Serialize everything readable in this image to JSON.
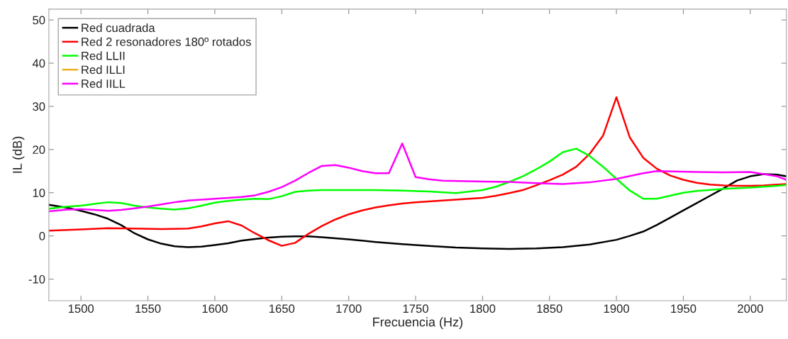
{
  "chart_data": {
    "type": "line",
    "xlabel": "Frecuencia (Hz)",
    "ylabel": "IL (dB)",
    "xlim": [
      1476,
      2027
    ],
    "ylim": [
      -15,
      52.5
    ],
    "xticks": [
      1500,
      1550,
      1600,
      1650,
      1700,
      1750,
      1800,
      1850,
      1900,
      1950,
      2000
    ],
    "yticks": [
      -10,
      0,
      10,
      20,
      30,
      40,
      50
    ],
    "grid": false,
    "legend": "top left",
    "marker": "none",
    "line_style": "solid",
    "series": [
      {
        "name": "Red cuadrada",
        "color": "#000000",
        "x": [
          1476,
          1490,
          1500,
          1510,
          1520,
          1530,
          1540,
          1550,
          1560,
          1570,
          1580,
          1590,
          1600,
          1610,
          1620,
          1630,
          1640,
          1650,
          1660,
          1670,
          1680,
          1700,
          1720,
          1740,
          1760,
          1780,
          1800,
          1820,
          1840,
          1860,
          1880,
          1900,
          1910,
          1920,
          1930,
          1940,
          1950,
          1960,
          1970,
          1980,
          1990,
          2000,
          2010,
          2020,
          2027
        ],
        "values": [
          7.2,
          6.5,
          5.8,
          5.0,
          4.0,
          2.5,
          0.6,
          -0.8,
          -1.8,
          -2.4,
          -2.6,
          -2.5,
          -2.1,
          -1.7,
          -1.1,
          -0.7,
          -0.4,
          -0.2,
          -0.1,
          -0.1,
          -0.3,
          -0.8,
          -1.4,
          -1.9,
          -2.3,
          -2.7,
          -2.9,
          -3.0,
          -2.9,
          -2.6,
          -2.0,
          -0.9,
          0.0,
          1.0,
          2.5,
          4.2,
          5.9,
          7.6,
          9.3,
          11.0,
          12.8,
          13.8,
          14.3,
          14.2,
          13.8
        ]
      },
      {
        "name": "Red 2 resonadores 180º rotados",
        "color": "#ff0000",
        "x": [
          1476,
          1500,
          1520,
          1540,
          1560,
          1580,
          1590,
          1600,
          1610,
          1620,
          1630,
          1640,
          1650,
          1660,
          1670,
          1680,
          1690,
          1700,
          1710,
          1720,
          1730,
          1740,
          1750,
          1760,
          1780,
          1800,
          1810,
          1820,
          1830,
          1840,
          1850,
          1860,
          1870,
          1880,
          1890,
          1900,
          1910,
          1920,
          1930,
          1940,
          1950,
          1960,
          1970,
          1980,
          1990,
          2000,
          2010,
          2020,
          2027
        ],
        "values": [
          1.2,
          1.5,
          1.8,
          1.7,
          1.6,
          1.7,
          2.2,
          2.9,
          3.4,
          2.4,
          0.6,
          -1.0,
          -2.3,
          -1.6,
          0.5,
          2.3,
          3.8,
          5.0,
          5.9,
          6.6,
          7.1,
          7.5,
          7.8,
          8.0,
          8.4,
          8.8,
          9.3,
          9.9,
          10.6,
          11.7,
          12.9,
          14.2,
          16.0,
          19.0,
          23.2,
          32.1,
          22.8,
          18.1,
          15.6,
          14.0,
          13.0,
          12.3,
          11.9,
          11.7,
          11.6,
          11.6,
          11.7,
          11.9,
          12.0
        ]
      },
      {
        "name": "Red LLII",
        "color": "#00ff00",
        "x": [
          1476,
          1490,
          1500,
          1510,
          1520,
          1530,
          1540,
          1550,
          1560,
          1570,
          1580,
          1590,
          1600,
          1610,
          1620,
          1630,
          1640,
          1650,
          1660,
          1670,
          1680,
          1700,
          1720,
          1740,
          1760,
          1780,
          1800,
          1810,
          1820,
          1830,
          1840,
          1850,
          1860,
          1870,
          1880,
          1890,
          1900,
          1910,
          1920,
          1930,
          1940,
          1950,
          1960,
          1980,
          2000,
          2020,
          2027
        ],
        "values": [
          6.3,
          6.8,
          7.0,
          7.4,
          7.8,
          7.6,
          7.0,
          6.6,
          6.3,
          6.1,
          6.4,
          7.0,
          7.7,
          8.1,
          8.4,
          8.6,
          8.5,
          9.2,
          10.2,
          10.5,
          10.6,
          10.6,
          10.6,
          10.5,
          10.3,
          9.9,
          10.6,
          11.4,
          12.5,
          13.8,
          15.4,
          17.2,
          19.4,
          20.2,
          18.5,
          16.0,
          13.2,
          10.5,
          8.6,
          8.6,
          9.3,
          10.0,
          10.4,
          10.9,
          11.2,
          11.6,
          11.8
        ]
      },
      {
        "name": "Red ILLI",
        "color": "#edb120"
      },
      {
        "name": "Red IILL",
        "color": "#ff00ff",
        "x": [
          1476,
          1490,
          1500,
          1510,
          1520,
          1530,
          1540,
          1550,
          1560,
          1570,
          1580,
          1590,
          1600,
          1610,
          1620,
          1630,
          1640,
          1650,
          1660,
          1670,
          1680,
          1690,
          1700,
          1710,
          1720,
          1730,
          1740,
          1750,
          1760,
          1770,
          1800,
          1820,
          1840,
          1860,
          1880,
          1900,
          1920,
          1930,
          1960,
          1980,
          2000,
          2020,
          2027
        ],
        "values": [
          5.7,
          6.1,
          6.2,
          6.0,
          5.8,
          6.0,
          6.4,
          6.8,
          7.3,
          7.8,
          8.2,
          8.4,
          8.6,
          8.8,
          9.0,
          9.4,
          10.2,
          11.3,
          12.8,
          14.6,
          16.2,
          16.4,
          15.8,
          15.0,
          14.5,
          14.5,
          21.4,
          13.6,
          13.1,
          12.8,
          12.6,
          12.5,
          12.2,
          12.0,
          12.4,
          13.2,
          14.5,
          15.0,
          14.8,
          14.7,
          14.8,
          13.8,
          13.0
        ]
      }
    ]
  }
}
